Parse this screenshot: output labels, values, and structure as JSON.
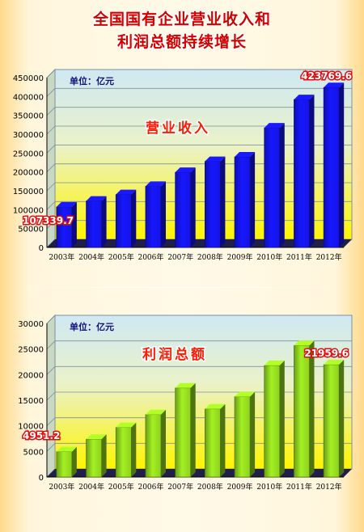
{
  "title": {
    "line1": "全国国有企业营业收入和",
    "line2": "利润总额持续增长"
  },
  "chart_data": [
    {
      "type": "bar",
      "title": "营业收入",
      "unit_label": "单位：亿元",
      "categories": [
        "2003年",
        "2004年",
        "2005年",
        "2006年",
        "2007年",
        "2008年",
        "2009年",
        "2010年",
        "2011年",
        "2012年"
      ],
      "values": [
        107339.7,
        123000,
        140000,
        162000,
        199000,
        228000,
        240000,
        317000,
        392000,
        423769.6
      ],
      "ylim": [
        0,
        450000
      ],
      "yticks": [
        0,
        50000,
        100000,
        150000,
        200000,
        250000,
        300000,
        350000,
        400000,
        450000
      ],
      "callouts": [
        {
          "index": 0,
          "text": "107339.7"
        },
        {
          "index": 9,
          "text": "423769.6"
        }
      ],
      "bar_color": "#1414e6",
      "grid": true
    },
    {
      "type": "bar",
      "title": "利润总额",
      "unit_label": "单位：亿元",
      "categories": [
        "2003年",
        "2004年",
        "2005年",
        "2006年",
        "2007年",
        "2008年",
        "2009年",
        "2010年",
        "2011年",
        "2012年"
      ],
      "values": [
        4951.2,
        7400,
        9700,
        12200,
        17400,
        13300,
        15700,
        21800,
        25700,
        21959.6
      ],
      "ylim": [
        0,
        30000
      ],
      "yticks": [
        0,
        5000,
        10000,
        15000,
        20000,
        25000,
        30000
      ],
      "callouts": [
        {
          "index": 0,
          "text": "4951.2"
        },
        {
          "index": 9,
          "text": "21959.6"
        }
      ],
      "bar_color": "#8ed11e",
      "grid": true
    }
  ]
}
